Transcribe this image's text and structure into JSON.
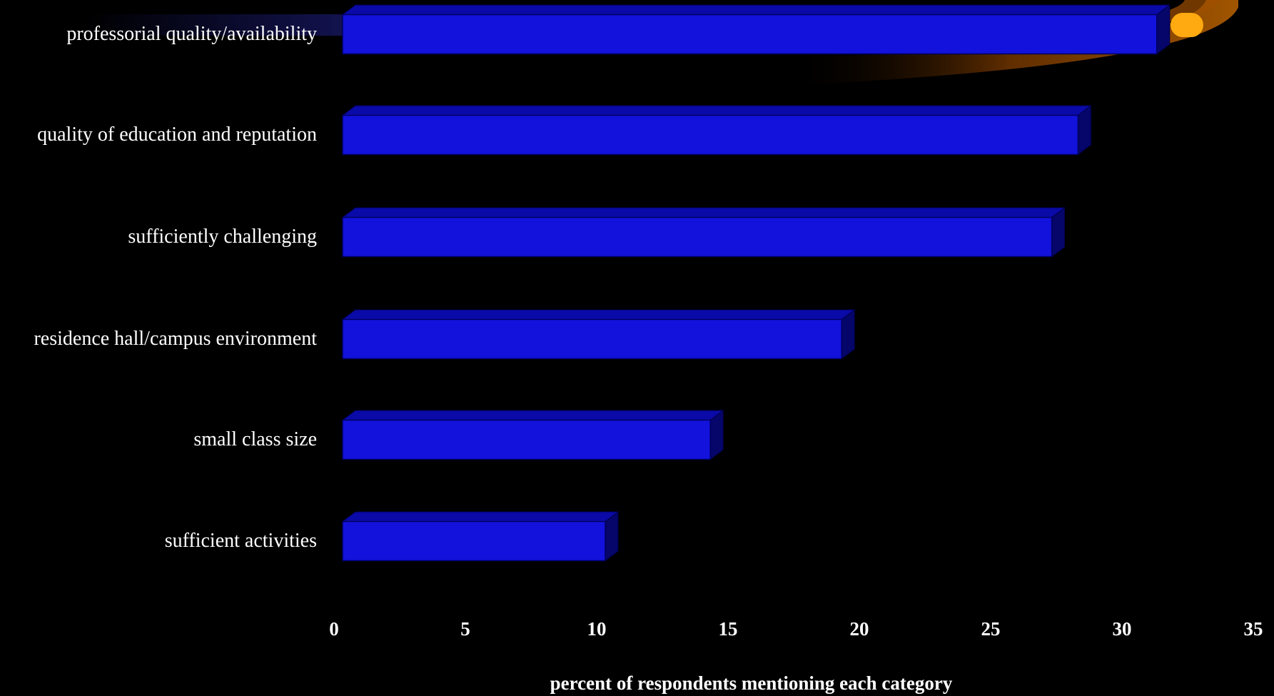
{
  "chart_data": {
    "type": "hbar3d",
    "categories": [
      "professorial quality/availability",
      "quality of education and reputation",
      "sufficiently challenging",
      "residence hall/campus environment",
      "small class size",
      "sufficient activities"
    ],
    "values": [
      31,
      28,
      27,
      19,
      14,
      10
    ],
    "color": "#1212dc",
    "xlim": [
      0,
      35
    ],
    "xticks": [
      0,
      5,
      10,
      15,
      20,
      25,
      30,
      35
    ],
    "x_label": "percent of respondents mentioning each category",
    "grid": false
  }
}
